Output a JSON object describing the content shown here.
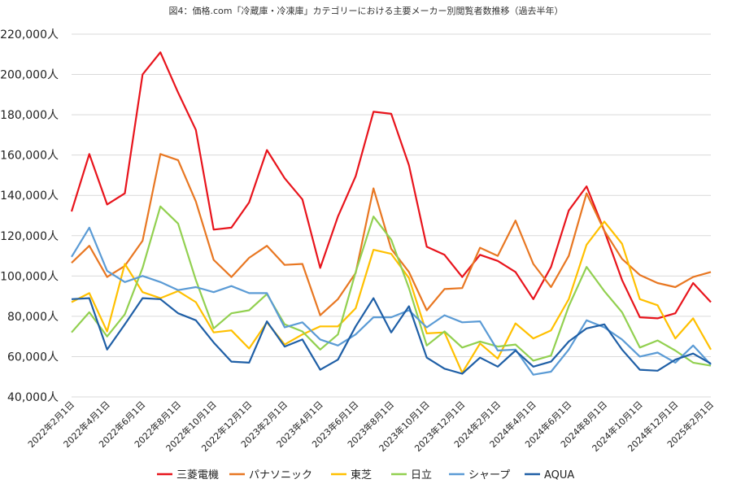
{
  "chart_data": {
    "type": "line",
    "title": "図4：価格.com「冷蔵庫・冷凍庫」カテゴリーにおける主要メーカー別閲覧者数推移（過去半年）",
    "xlabel": "",
    "ylabel": "",
    "ylim": [
      40000,
      220000
    ],
    "yticks": [
      40000,
      60000,
      80000,
      100000,
      120000,
      140000,
      160000,
      180000,
      200000,
      220000
    ],
    "y_unit_suffix": "人",
    "grid": true,
    "legend_position": "bottom",
    "x": [
      "2022-02",
      "2022-03",
      "2022-04",
      "2022-05",
      "2022-06",
      "2022-07",
      "2022-08",
      "2022-09",
      "2022-10",
      "2022-11",
      "2022-12",
      "2023-01",
      "2023-02",
      "2023-03",
      "2023-04",
      "2023-05",
      "2023-06",
      "2023-07",
      "2023-08",
      "2023-09",
      "2023-10",
      "2023-11",
      "2023-12",
      "2024-01",
      "2024-02",
      "2024-03",
      "2024-04",
      "2024-05",
      "2024-06",
      "2024-07",
      "2024-08",
      "2024-09",
      "2024-10",
      "2024-11",
      "2024-12",
      "2025-01",
      "2025-02"
    ],
    "x_tick_labels": [
      "2022年2月1日",
      "2022年4月1日",
      "2022年6月1日",
      "2022年8月1日",
      "2022年10月1日",
      "2022年12月1日",
      "2023年2月1日",
      "2023年4月1日",
      "2023年6月1日",
      "2023年8月1日",
      "2023年10月1日",
      "2023年12月1日",
      "2024年2月1日",
      "2024年4月1日",
      "2024年6月1日",
      "2024年8月1日",
      "2024年10月1日",
      "2024年12月1日",
      "2025年2月1日"
    ],
    "series": [
      {
        "name": "三菱電機",
        "color": "#e8141c",
        "values": [
          132000,
          160500,
          135500,
          141000,
          200000,
          211000,
          191000,
          172500,
          123000,
          124000,
          136500,
          162500,
          148500,
          138000,
          104000,
          129500,
          149500,
          181500,
          180500,
          155000,
          114500,
          110500,
          99500,
          110500,
          107500,
          102000,
          88500,
          104500,
          132500,
          144500,
          122500,
          98000,
          79500,
          79000,
          81500,
          96500,
          87000
        ]
      },
      {
        "name": "パナソニック",
        "color": "#e87722",
        "values": [
          106500,
          115000,
          99500,
          105000,
          117500,
          160500,
          157500,
          137000,
          108000,
          99500,
          109000,
          115000,
          105500,
          106000,
          80500,
          88500,
          101500,
          143500,
          113500,
          102000,
          83000,
          93500,
          94000,
          114000,
          110000,
          127500,
          106000,
          94500,
          110000,
          141000,
          122500,
          108500,
          100500,
          96500,
          94500,
          99500,
          102000
        ]
      },
      {
        "name": "東芝",
        "color": "#ffc000",
        "values": [
          87000,
          91500,
          72500,
          106000,
          92000,
          89000,
          92500,
          87000,
          72000,
          73000,
          64000,
          77000,
          66000,
          71000,
          75000,
          75000,
          84000,
          113000,
          111000,
          99000,
          71500,
          72000,
          52000,
          66500,
          59000,
          76500,
          69000,
          73000,
          88500,
          115500,
          127000,
          116000,
          88500,
          85500,
          69000,
          79000,
          63500
        ]
      },
      {
        "name": "日立",
        "color": "#92d050",
        "values": [
          72000,
          82000,
          70000,
          81000,
          104000,
          134500,
          126000,
          98000,
          74000,
          81500,
          83000,
          91000,
          76000,
          72500,
          63500,
          71000,
          102000,
          129500,
          118000,
          94000,
          65500,
          72500,
          64500,
          67500,
          65000,
          66000,
          58000,
          60500,
          85000,
          104500,
          92500,
          82000,
          64500,
          68000,
          63000,
          57000,
          55500
        ]
      },
      {
        "name": "シャープ",
        "color": "#5b9bd5",
        "values": [
          109500,
          124000,
          102500,
          97000,
          100000,
          97000,
          93000,
          94500,
          92000,
          95000,
          91500,
          91500,
          74500,
          77000,
          68500,
          65500,
          71000,
          79500,
          79500,
          83000,
          74500,
          80500,
          77000,
          77500,
          63000,
          63500,
          51000,
          52500,
          63500,
          78000,
          74500,
          68500,
          60000,
          62000,
          57000,
          65500,
          56000
        ]
      },
      {
        "name": "AQUA",
        "color": "#1f5fa6",
        "values": [
          88500,
          89000,
          63500,
          76000,
          89000,
          88500,
          81500,
          78000,
          67000,
          57500,
          57000,
          77500,
          65000,
          68500,
          53500,
          58500,
          75000,
          89000,
          72000,
          85000,
          59500,
          54000,
          51500,
          59500,
          55000,
          63000,
          55000,
          57500,
          67500,
          74000,
          76000,
          63500,
          53500,
          53000,
          58500,
          61500,
          56500
        ]
      }
    ]
  }
}
